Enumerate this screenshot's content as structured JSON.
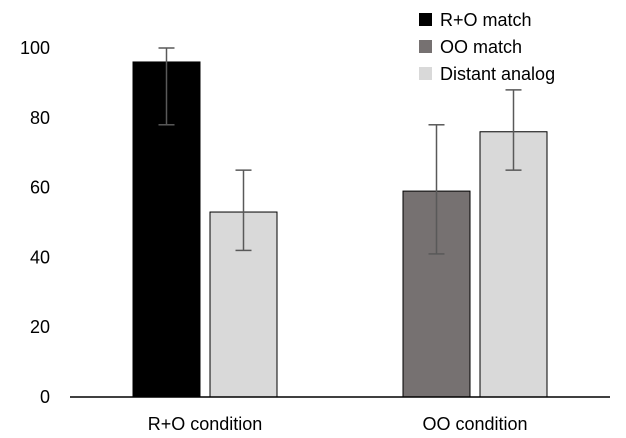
{
  "chart_data": {
    "type": "bar",
    "categories": [
      "R+O condition",
      "OO condition"
    ],
    "series": [
      {
        "name": "R+O match",
        "color": "#000000",
        "values": [
          96,
          null
        ],
        "err_low": [
          78,
          null
        ],
        "err_high": [
          100,
          null
        ]
      },
      {
        "name": "OO match",
        "color": "#767171",
        "values": [
          null,
          59
        ],
        "err_low": [
          null,
          41
        ],
        "err_high": [
          null,
          78
        ]
      },
      {
        "name": "Distant analog",
        "color": "#d9d9d9",
        "values": [
          53,
          76
        ],
        "err_low": [
          42,
          65
        ],
        "err_high": [
          65,
          88
        ]
      }
    ],
    "y_ticks": [
      "0",
      "20",
      "40",
      "60",
      "80",
      "100"
    ],
    "ylim": [
      0,
      100
    ],
    "grid": false,
    "legend_position": "top-right",
    "title": "",
    "xlabel": "",
    "ylabel": ""
  }
}
